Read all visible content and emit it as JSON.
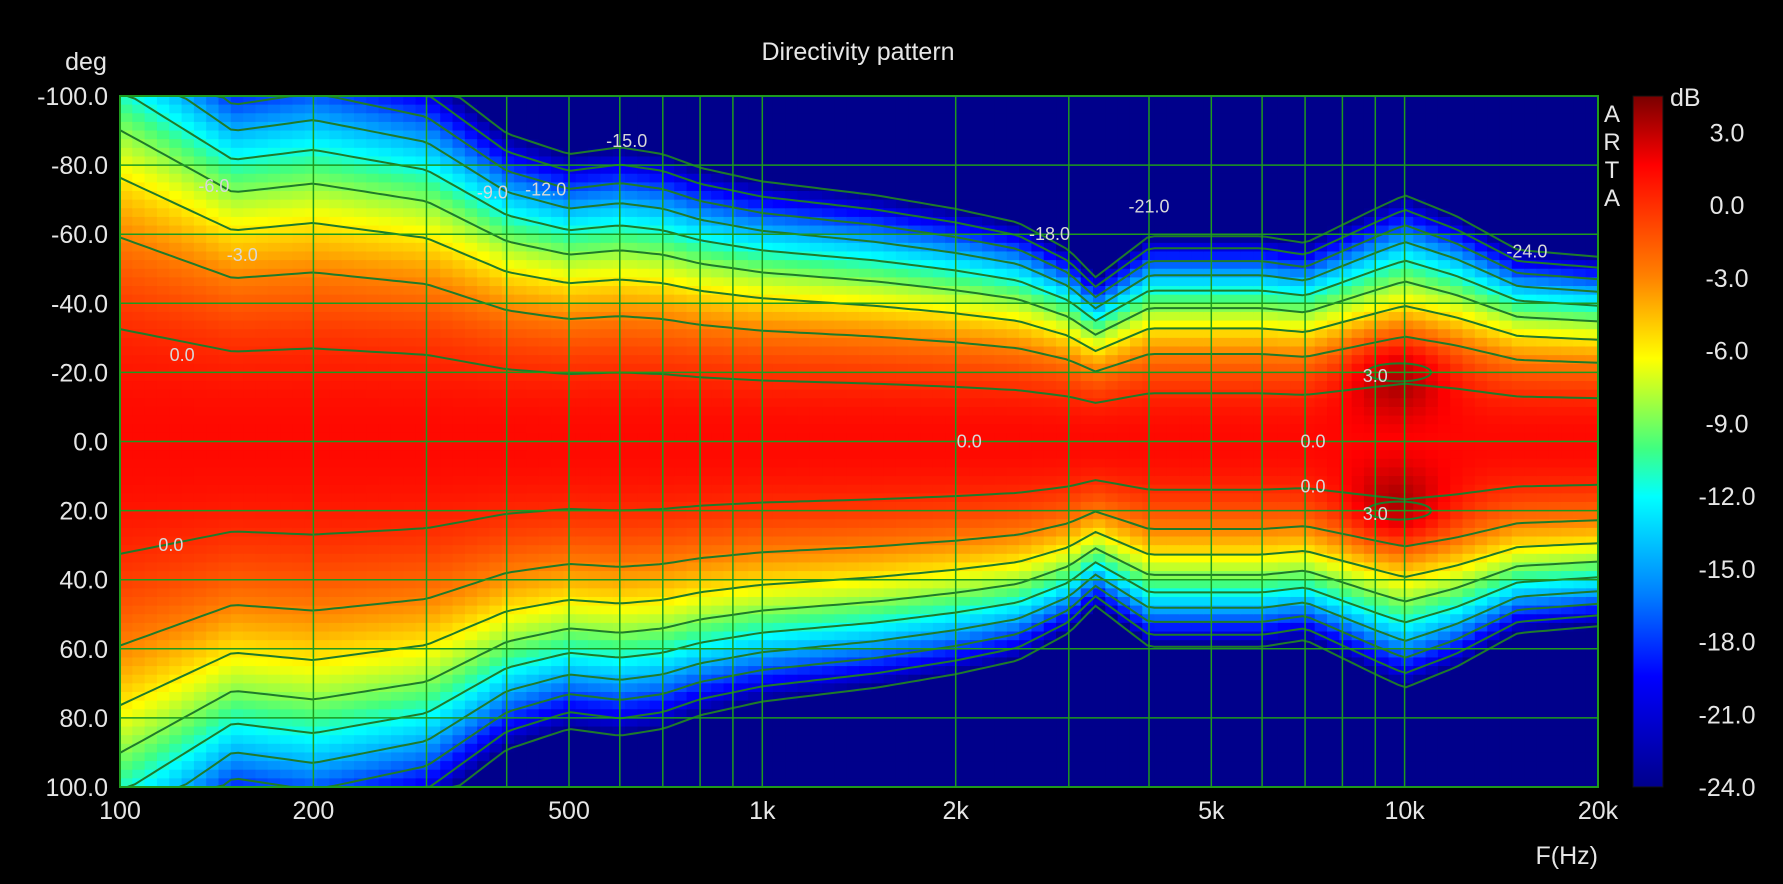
{
  "chart_data": {
    "type": "heatmap",
    "title": "Directivity pattern",
    "ylabel": "deg",
    "xlabel": "F(Hz)",
    "colorbar_label": "dB",
    "watermark": [
      "A",
      "R",
      "T",
      "A"
    ],
    "x_scale": "log",
    "xlim": [
      100,
      20000
    ],
    "ylim": [
      -100,
      100
    ],
    "x_tick_values": [
      100,
      200,
      500,
      1000,
      2000,
      5000,
      10000,
      20000
    ],
    "x_tick_labels": [
      "100",
      "200",
      "500",
      "1k",
      "2k",
      "5k",
      "10k",
      "20k"
    ],
    "x_grid_values": [
      100,
      200,
      300,
      400,
      500,
      600,
      700,
      800,
      900,
      1000,
      2000,
      3000,
      4000,
      5000,
      6000,
      7000,
      8000,
      9000,
      10000,
      20000
    ],
    "y_tick_values": [
      -100,
      -80,
      -60,
      -40,
      -20,
      0,
      20,
      40,
      60,
      80,
      100
    ],
    "y_tick_labels": [
      "-100.0",
      "-80.0",
      "-60.0",
      "-40.0",
      "-20.0",
      "0.0",
      "20.0",
      "40.0",
      "60.0",
      "80.0",
      "100.0"
    ],
    "colorbar_range": [
      -24,
      4.5
    ],
    "colorbar_tick_values": [
      3,
      0,
      -3,
      -6,
      -9,
      -12,
      -15,
      -18,
      -21,
      -24
    ],
    "colorbar_tick_labels": [
      "3.0",
      "0.0",
      "-3.0",
      "-6.0",
      "-9.0",
      "-12.0",
      "-15.0",
      "-18.0",
      "-21.0",
      "-24.0"
    ],
    "contour_interval_db": 3,
    "beamwidth_-6dB_deg": [
      [
        100,
        70
      ],
      [
        150,
        56
      ],
      [
        200,
        58
      ],
      [
        300,
        54
      ],
      [
        400,
        45
      ],
      [
        500,
        42
      ],
      [
        600,
        43
      ],
      [
        700,
        42
      ],
      [
        800,
        40
      ],
      [
        1000,
        38
      ],
      [
        1500,
        36
      ],
      [
        2000,
        34
      ],
      [
        2500,
        32
      ],
      [
        3000,
        28
      ],
      [
        3300,
        24
      ],
      [
        4000,
        30
      ],
      [
        5000,
        30
      ],
      [
        6000,
        30
      ],
      [
        7000,
        29
      ],
      [
        9000,
        34
      ],
      [
        10000,
        36
      ],
      [
        12000,
        33
      ],
      [
        15000,
        28
      ],
      [
        20000,
        27
      ]
    ],
    "contour_labels": [
      {
        "text": "-6.0",
        "freq": 140,
        "deg": -74
      },
      {
        "text": "-3.0",
        "freq": 155,
        "deg": -54
      },
      {
        "text": "0.0",
        "freq": 125,
        "deg": -25
      },
      {
        "text": "0.0",
        "freq": 120,
        "deg": 30
      },
      {
        "text": "-15.0",
        "freq": 615,
        "deg": -87
      },
      {
        "text": "-9.0",
        "freq": 380,
        "deg": -72
      },
      {
        "text": "-12.0",
        "freq": 460,
        "deg": -73
      },
      {
        "text": "0.0",
        "freq": 2100,
        "deg": 0
      },
      {
        "text": "-18.0",
        "freq": 2800,
        "deg": -60
      },
      {
        "text": "-21.0",
        "freq": 4000,
        "deg": -68
      },
      {
        "text": "0.0",
        "freq": 7200,
        "deg": 0
      },
      {
        "text": "0.0",
        "freq": 7200,
        "deg": 13
      },
      {
        "text": "3.0",
        "freq": 9000,
        "deg": -19
      },
      {
        "text": "3.0",
        "freq": 9000,
        "deg": 21
      },
      {
        "text": "-24.0",
        "freq": 15500,
        "deg": -55
      }
    ]
  }
}
